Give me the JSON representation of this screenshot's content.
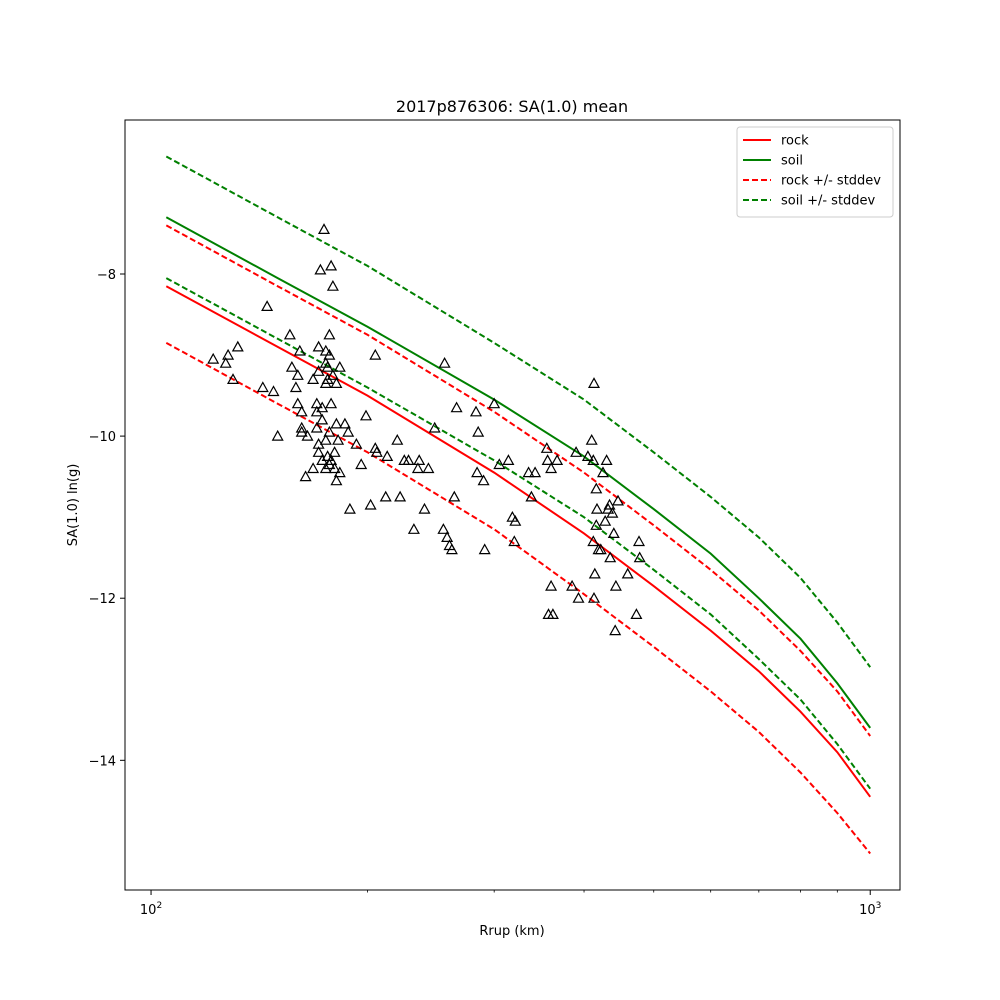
{
  "chart_data": {
    "type": "scatter",
    "title": "2017p876306: SA(1.0) mean",
    "xlabel": "Rrup (km)",
    "ylabel": "SA(1.0) ln(g)",
    "xscale": "log",
    "xlim": [
      92,
      1100
    ],
    "ylim": [
      -15.6,
      -6.1
    ],
    "x_ticks": [
      100,
      1000
    ],
    "x_tick_labels": [
      {
        "base": "10",
        "exp": "2"
      },
      {
        "base": "10",
        "exp": "3"
      }
    ],
    "y_ticks": [
      -14,
      -12,
      -10,
      -8
    ],
    "y_tick_labels": [
      "−14",
      "−12",
      "−10",
      "−8"
    ],
    "grid": false,
    "legend_position": "top-right",
    "series": [
      {
        "name": "rock",
        "color": "#ff0000",
        "style": "solid",
        "x": [
          105,
          150,
          200,
          300,
          400,
          500,
          600,
          700,
          800,
          900,
          1000
        ],
        "y": [
          -8.15,
          -8.9,
          -9.5,
          -10.45,
          -11.2,
          -11.85,
          -12.4,
          -12.9,
          -13.4,
          -13.9,
          -14.45
        ]
      },
      {
        "name": "soil",
        "color": "#008000",
        "style": "solid",
        "x": [
          105,
          150,
          200,
          300,
          400,
          500,
          600,
          700,
          800,
          900,
          1000
        ],
        "y": [
          -7.3,
          -8.05,
          -8.65,
          -9.55,
          -10.25,
          -10.9,
          -11.45,
          -12.0,
          -12.5,
          -13.05,
          -13.6
        ]
      },
      {
        "name": "rock +/- stddev",
        "color": "#ff0000",
        "style": "dashed",
        "x": [
          105,
          150,
          200,
          300,
          400,
          500,
          600,
          700,
          800,
          900,
          1000
        ],
        "y": [
          -7.4,
          -8.15,
          -8.75,
          -9.7,
          -10.45,
          -11.1,
          -11.65,
          -12.15,
          -12.65,
          -13.15,
          -13.7
        ]
      },
      {
        "name": "rock +/- stddev",
        "color": "#ff0000",
        "style": "dashed",
        "legend": false,
        "x": [
          105,
          150,
          200,
          300,
          400,
          500,
          600,
          700,
          800,
          900,
          1000
        ],
        "y": [
          -8.85,
          -9.6,
          -10.2,
          -11.15,
          -11.95,
          -12.6,
          -13.15,
          -13.65,
          -14.15,
          -14.65,
          -15.15
        ]
      },
      {
        "name": "soil +/- stddev",
        "color": "#008000",
        "style": "dashed",
        "x": [
          105,
          150,
          200,
          300,
          400,
          500,
          600,
          700,
          800,
          900,
          1000
        ],
        "y": [
          -6.55,
          -7.3,
          -7.9,
          -8.85,
          -9.55,
          -10.2,
          -10.75,
          -11.25,
          -11.75,
          -12.3,
          -12.85
        ]
      },
      {
        "name": "soil +/- stddev",
        "color": "#008000",
        "style": "dashed",
        "legend": false,
        "x": [
          105,
          150,
          200,
          300,
          400,
          500,
          600,
          700,
          800,
          900,
          1000
        ],
        "y": [
          -8.05,
          -8.8,
          -9.4,
          -10.3,
          -11.0,
          -11.65,
          -12.2,
          -12.75,
          -13.25,
          -13.8,
          -14.35
        ]
      }
    ],
    "observations": {
      "marker": "triangle",
      "points": [
        [
          122,
          -9.05
        ],
        [
          127,
          -9.1
        ],
        [
          128,
          -9.0
        ],
        [
          130,
          -9.3
        ],
        [
          132,
          -8.9
        ],
        [
          143,
          -9.4
        ],
        [
          145,
          -8.4
        ],
        [
          148,
          -9.45
        ],
        [
          150,
          -10.0
        ],
        [
          156,
          -8.75
        ],
        [
          157,
          -9.15
        ],
        [
          159,
          -9.4
        ],
        [
          160,
          -9.6
        ],
        [
          160,
          -9.25
        ],
        [
          161,
          -8.95
        ],
        [
          162,
          -9.7
        ],
        [
          162,
          -9.95
        ],
        [
          162,
          -9.9
        ],
        [
          164,
          -10.5
        ],
        [
          165,
          -10.0
        ],
        [
          168,
          -9.3
        ],
        [
          168,
          -10.4
        ],
        [
          170,
          -9.6
        ],
        [
          170,
          -9.7
        ],
        [
          170,
          -9.9
        ],
        [
          171,
          -8.9
        ],
        [
          171,
          -9.2
        ],
        [
          171,
          -10.1
        ],
        [
          171,
          -10.2
        ],
        [
          172,
          -7.95
        ],
        [
          173,
          -9.65
        ],
        [
          173,
          -9.8
        ],
        [
          173,
          -10.3
        ],
        [
          174,
          -7.45
        ],
        [
          175,
          -8.95
        ],
        [
          175,
          -9.1
        ],
        [
          175,
          -9.35
        ],
        [
          175,
          -10.05
        ],
        [
          175,
          -10.4
        ],
        [
          176,
          -9.15
        ],
        [
          176,
          -9.3
        ],
        [
          176,
          -10.25
        ],
        [
          177,
          -8.75
        ],
        [
          177,
          -9.0
        ],
        [
          177,
          -9.95
        ],
        [
          177,
          -10.35
        ],
        [
          178,
          -7.9
        ],
        [
          178,
          -9.6
        ],
        [
          178,
          -10.3
        ],
        [
          179,
          -8.15
        ],
        [
          179,
          -9.25
        ],
        [
          180,
          -10.2
        ],
        [
          180,
          -10.4
        ],
        [
          181,
          -9.35
        ],
        [
          181,
          -10.55
        ],
        [
          181,
          -9.85
        ],
        [
          182,
          -10.05
        ],
        [
          183,
          -10.45
        ],
        [
          183,
          -9.15
        ],
        [
          186,
          -9.85
        ],
        [
          188,
          -9.95
        ],
        [
          189,
          -10.9
        ],
        [
          193,
          -10.1
        ],
        [
          196,
          -10.35
        ],
        [
          199,
          -9.75
        ],
        [
          202,
          -10.85
        ],
        [
          205,
          -10.15
        ],
        [
          205,
          -9.0
        ],
        [
          206,
          -10.2
        ],
        [
          212,
          -10.75
        ],
        [
          213,
          -10.25
        ],
        [
          220,
          -10.05
        ],
        [
          222,
          -10.75
        ],
        [
          225,
          -10.3
        ],
        [
          228,
          -10.3
        ],
        [
          232,
          -11.15
        ],
        [
          235,
          -10.4
        ],
        [
          236,
          -10.3
        ],
        [
          240,
          -10.9
        ],
        [
          243,
          -10.4
        ],
        [
          248,
          -9.9
        ],
        [
          255,
          -11.15
        ],
        [
          256,
          -9.1
        ],
        [
          258,
          -11.25
        ],
        [
          260,
          -11.35
        ],
        [
          262,
          -11.4
        ],
        [
          264,
          -10.75
        ],
        [
          266,
          -9.65
        ],
        [
          283,
          -9.7
        ],
        [
          284,
          -10.45
        ],
        [
          285,
          -9.95
        ],
        [
          290,
          -10.55
        ],
        [
          291,
          -11.4
        ],
        [
          300,
          -9.6
        ],
        [
          305,
          -10.35
        ],
        [
          314,
          -10.3
        ],
        [
          318,
          -11.0
        ],
        [
          320,
          -11.3
        ],
        [
          321,
          -11.05
        ],
        [
          335,
          -10.45
        ],
        [
          338,
          -10.75
        ],
        [
          342,
          -10.45
        ],
        [
          355,
          -10.15
        ],
        [
          356,
          -10.3
        ],
        [
          357,
          -12.2
        ],
        [
          360,
          -10.4
        ],
        [
          360,
          -11.85
        ],
        [
          362,
          -12.2
        ],
        [
          367,
          -10.3
        ],
        [
          385,
          -11.85
        ],
        [
          390,
          -10.2
        ],
        [
          393,
          -12.0
        ],
        [
          405,
          -10.25
        ],
        [
          410,
          -10.05
        ],
        [
          412,
          -10.3
        ],
        [
          412,
          -11.3
        ],
        [
          413,
          -12.0
        ],
        [
          413,
          -9.35
        ],
        [
          414,
          -11.7
        ],
        [
          416,
          -10.65
        ],
        [
          416,
          -11.1
        ],
        [
          417,
          -10.9
        ],
        [
          419,
          -11.4
        ],
        [
          422,
          -11.4
        ],
        [
          425,
          -10.45
        ],
        [
          428,
          -11.05
        ],
        [
          430,
          -10.3
        ],
        [
          432,
          -10.9
        ],
        [
          434,
          -10.85
        ],
        [
          435,
          -11.5
        ],
        [
          438,
          -10.95
        ],
        [
          440,
          -11.2
        ],
        [
          442,
          -12.4
        ],
        [
          443,
          -11.85
        ],
        [
          446,
          -10.8
        ],
        [
          460,
          -11.7
        ],
        [
          473,
          -12.2
        ],
        [
          477,
          -11.3
        ],
        [
          478,
          -11.5
        ]
      ]
    }
  }
}
